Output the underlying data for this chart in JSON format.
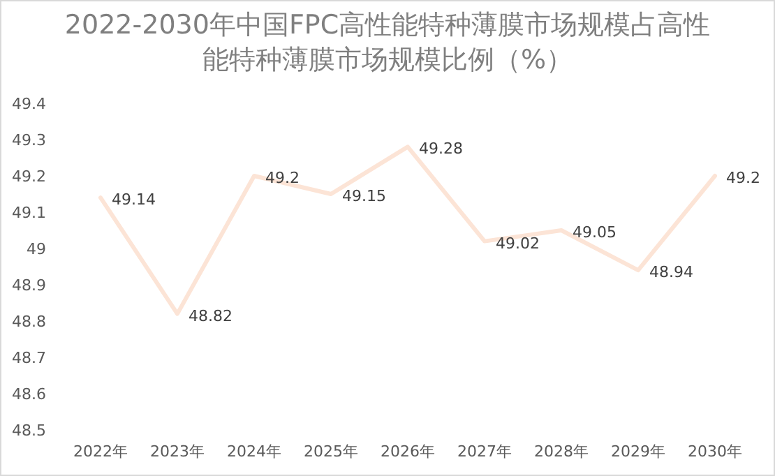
{
  "chart_data": {
    "type": "line",
    "title": "2022-2030年中国FPC高性能特种薄膜市场规模占高性能特种薄膜市场规模比例（%）",
    "categories": [
      "2022年",
      "2023年",
      "2024年",
      "2025年",
      "2026年",
      "2027年",
      "2028年",
      "2029年",
      "2030年"
    ],
    "series": [
      {
        "color": "#fce4d6",
        "values": [
          49.14,
          48.82,
          49.2,
          49.15,
          49.28,
          49.02,
          49.05,
          48.94,
          49.2
        ]
      }
    ],
    "ylim": [
      48.5,
      49.4
    ],
    "yticks": [
      48.5,
      48.6,
      48.7,
      48.8,
      48.9,
      49,
      49.1,
      49.2,
      49.3,
      49.4
    ],
    "data_labels": true,
    "grid": false,
    "marker": "none",
    "line_style": "solid"
  }
}
